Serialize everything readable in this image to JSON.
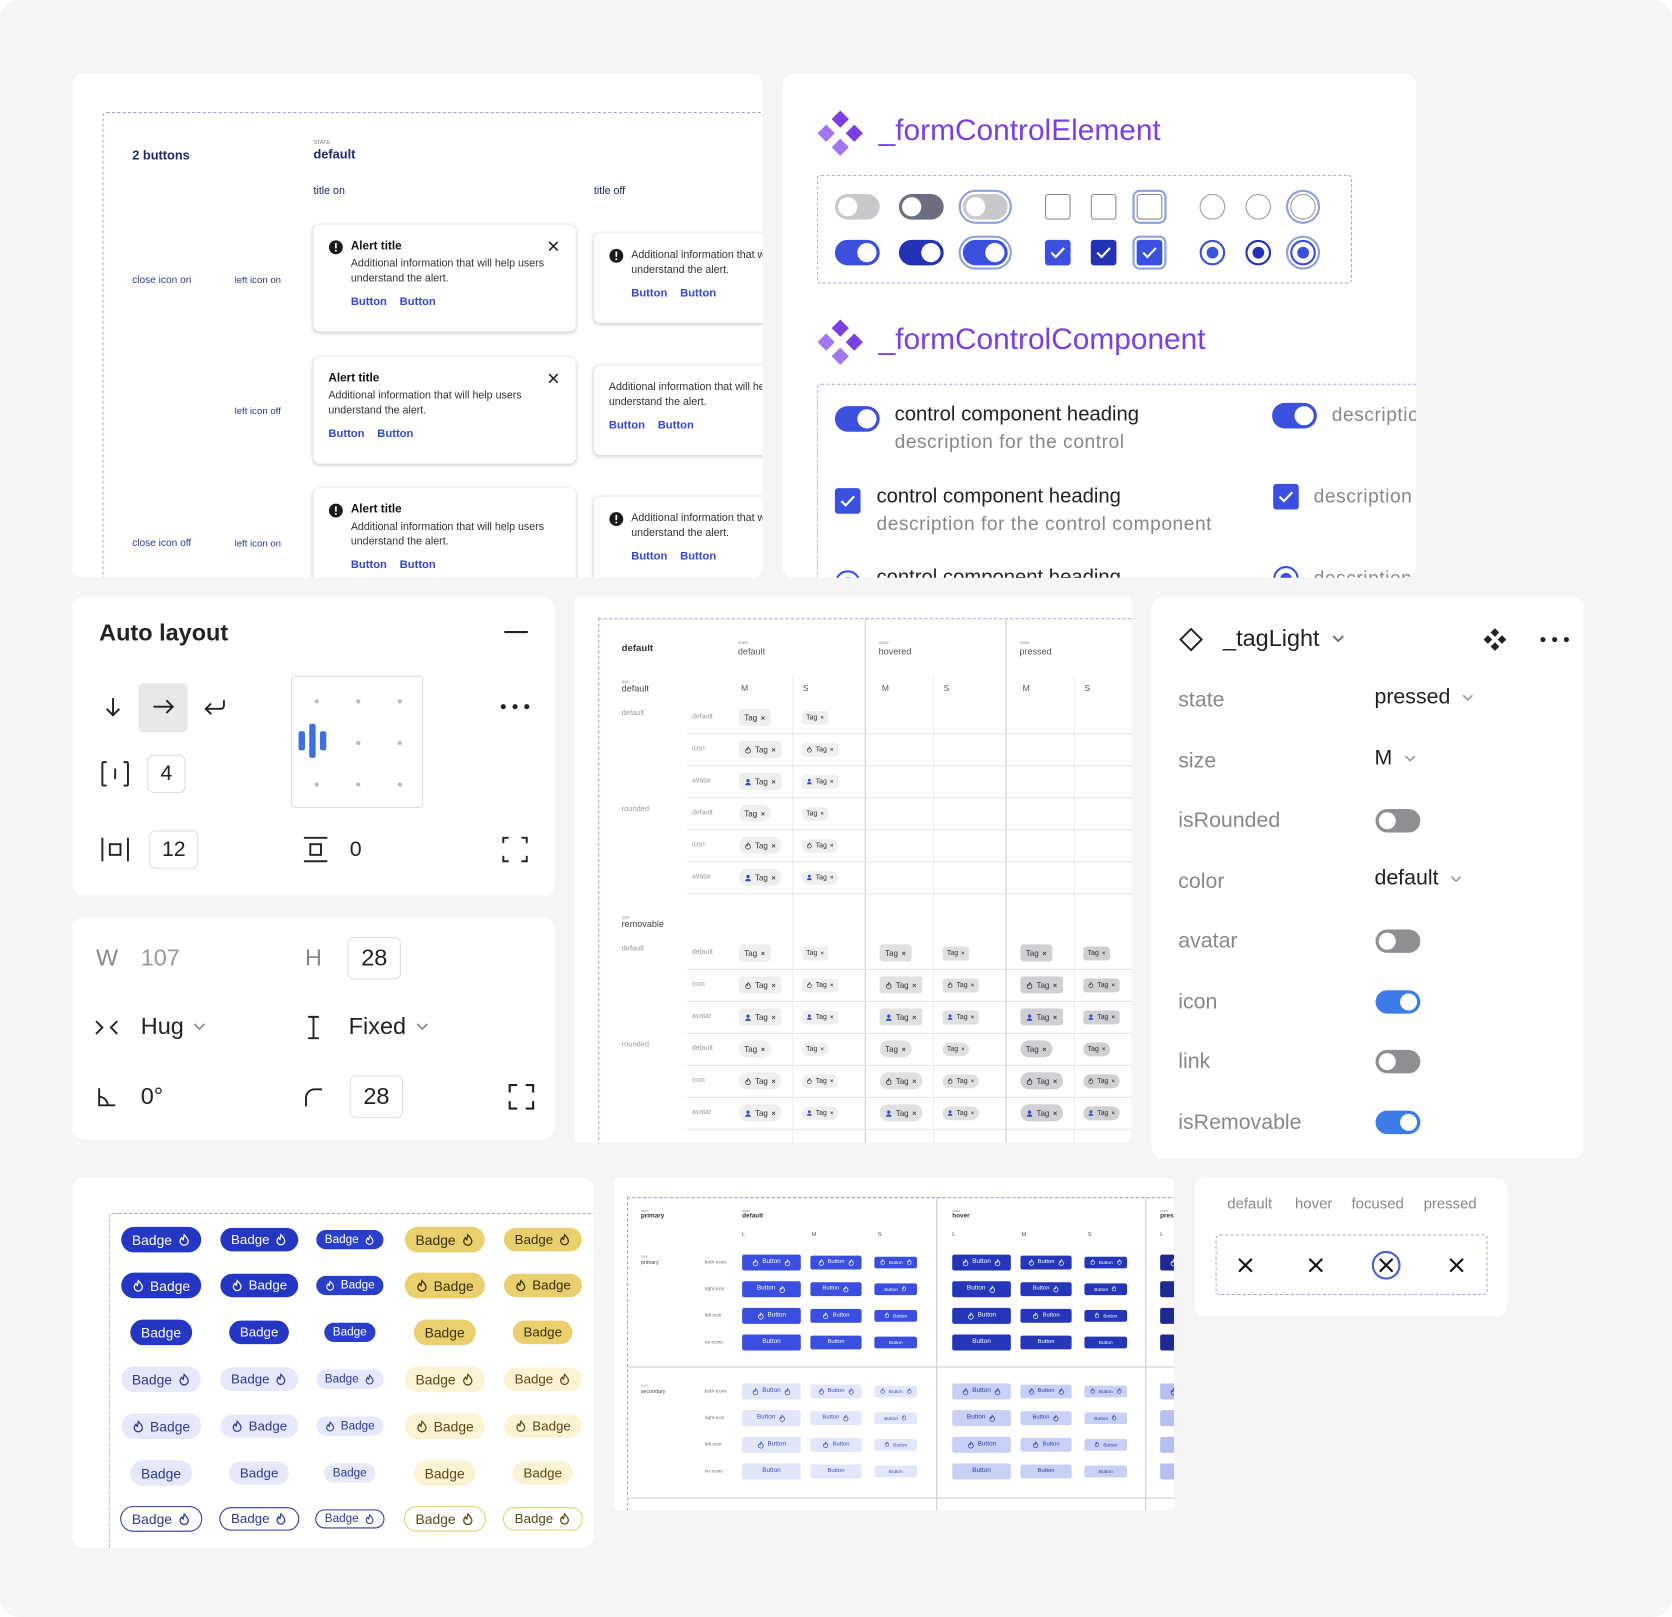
{
  "alerts": {
    "heading": "2 buttons",
    "state_caption": "STATE",
    "state": "default",
    "columns": [
      "title on",
      "title off"
    ],
    "rows": [
      {
        "group": "close icon on",
        "variant": "left icon on"
      },
      {
        "variant": "left icon off"
      },
      {
        "group": "close icon off",
        "variant": "left icon on"
      }
    ],
    "alert": {
      "title": "Alert title",
      "body": "Additional information that will help users understand the alert.",
      "buttons": [
        "Button",
        "Button"
      ]
    }
  },
  "form_control": {
    "element_title": "_formControlElement",
    "component_title": "_formControlComponent",
    "heading": "control component heading",
    "description": "description for the control",
    "description_long": "description for the control component",
    "description_short": "description"
  },
  "auto_layout": {
    "title": "Auto layout",
    "gap": 4,
    "padding": 12,
    "vertical_padding": 0
  },
  "dimensions": {
    "w_label": "W",
    "width": 107,
    "h_label": "H",
    "height": 28,
    "width_mode": "Hug",
    "height_mode": "Fixed",
    "rotation": "0°",
    "radius": 28
  },
  "tag_table": {
    "caption_state": "state",
    "caption_type": "type",
    "header": "default",
    "states": [
      "default",
      "hovered",
      "pressed"
    ],
    "sizes": [
      "M",
      "S"
    ],
    "types": [
      "default",
      "removable"
    ],
    "roundings": [
      "default",
      "rounded"
    ],
    "variants": [
      "default",
      "icon",
      "avatar"
    ],
    "tag": "Tag"
  },
  "tag_light": {
    "title": "_tagLight",
    "props": [
      {
        "label": "state",
        "value": "pressed"
      },
      {
        "label": "size",
        "value": "M"
      },
      {
        "label": "isRounded",
        "on": false
      },
      {
        "label": "color",
        "value": "default"
      },
      {
        "label": "avatar",
        "on": false
      },
      {
        "label": "icon",
        "on": true
      },
      {
        "label": "link",
        "on": false
      },
      {
        "label": "isRemovable",
        "on": true
      }
    ]
  },
  "badges": {
    "text": "Badge",
    "columns": [
      {
        "size": "L",
        "dark": "#2336c4",
        "light": "#e6e9fb",
        "ink": "#2a3a9c"
      },
      {
        "size": "M",
        "dark": "#2336c4",
        "light": "#e6e9fb",
        "ink": "#2a3a9c"
      },
      {
        "size": "S",
        "dark": "#2a3fc9",
        "light": "#e6e9fb",
        "ink": "#2a3a9c"
      },
      {
        "size": "L",
        "dark": "#e9cf6e",
        "light": "#fbf3d3",
        "ink": "#5a4a10"
      },
      {
        "size": "M",
        "dark": "#e9cf6e",
        "light": "#fbf3d3",
        "ink": "#5a4a10"
      }
    ],
    "rows": [
      {
        "style": "filled",
        "icon": "right"
      },
      {
        "style": "filled",
        "icon": "left"
      },
      {
        "style": "filled",
        "icon": "none"
      },
      {
        "style": "light",
        "icon": "right"
      },
      {
        "style": "light",
        "icon": "left"
      },
      {
        "style": "light",
        "icon": "none"
      },
      {
        "style": "outline",
        "icon": "right"
      }
    ]
  },
  "button_table": {
    "caption_style": "style",
    "caption_state": "state",
    "caption_type": "type",
    "style": "primary",
    "states": [
      "default",
      "hover",
      "pressed"
    ],
    "sizes": [
      "L",
      "M",
      "S"
    ],
    "types": [
      "primary",
      "secondary"
    ],
    "variants": [
      "both icons",
      "right icon",
      "left icon",
      "no icons"
    ],
    "button": "Button"
  },
  "close_buttons": {
    "states": [
      "default",
      "hover",
      "focused",
      "pressed"
    ]
  }
}
